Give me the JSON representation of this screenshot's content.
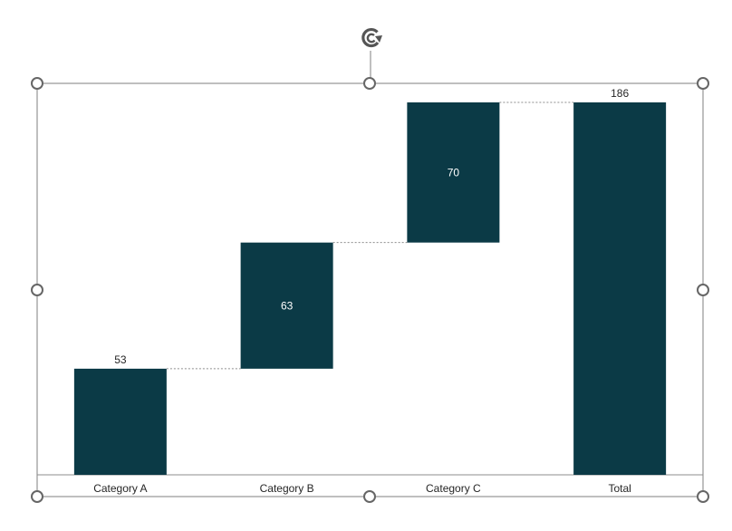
{
  "chart_data": {
    "type": "waterfall",
    "categories": [
      "Category A",
      "Category B",
      "Category C",
      "Total"
    ],
    "values": [
      53,
      63,
      70,
      186
    ],
    "is_total": [
      false,
      false,
      false,
      true
    ],
    "data_labels": [
      "53",
      "63",
      "70",
      "186"
    ],
    "ylim": [
      0,
      186
    ],
    "grid": false,
    "legend": "none",
    "title": "",
    "xlabel": "",
    "ylabel": ""
  },
  "colors": {
    "bar": "#0b3a46",
    "connector": "#8c8c8c",
    "axis": "#8c8c8c",
    "selection_frame": "#7f7f7f",
    "handle_fill": "#ffffff",
    "handle_stroke": "#666666"
  },
  "icons": {
    "rotate": "rotate-icon",
    "handle": "resize-handle"
  }
}
